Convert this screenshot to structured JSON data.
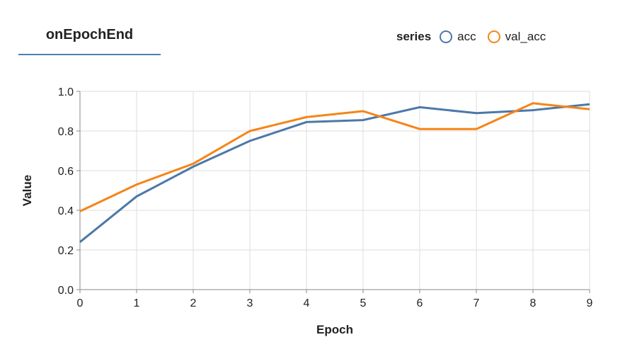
{
  "tab": {
    "label": "onEpochEnd"
  },
  "chart_data": {
    "type": "line",
    "xlabel": "Epoch",
    "ylabel": "Value",
    "x": [
      0,
      1,
      2,
      3,
      4,
      5,
      6,
      7,
      8,
      9
    ],
    "xlim": [
      0,
      9
    ],
    "ylim": [
      0,
      1
    ],
    "yticks": [
      "0.0",
      "0.2",
      "0.4",
      "0.6",
      "0.8",
      "1.0"
    ],
    "xticks": [
      "0",
      "1",
      "2",
      "3",
      "4",
      "5",
      "6",
      "7",
      "8",
      "9"
    ],
    "grid": true,
    "legend": {
      "title": "series",
      "placement": "top-right"
    },
    "series": [
      {
        "name": "acc",
        "color": "#4c78a8",
        "values": [
          0.24,
          0.47,
          0.62,
          0.75,
          0.845,
          0.855,
          0.92,
          0.89,
          0.905,
          0.935
        ]
      },
      {
        "name": "val_acc",
        "color": "#f58518",
        "values": [
          0.395,
          0.53,
          0.635,
          0.8,
          0.87,
          0.9,
          0.81,
          0.81,
          0.94,
          0.91
        ]
      }
    ]
  }
}
